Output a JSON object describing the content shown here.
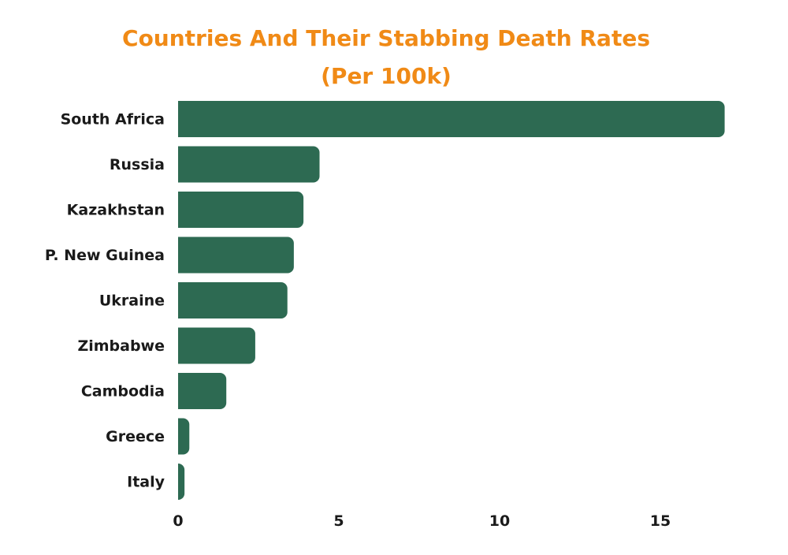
{
  "chart_data": {
    "type": "bar",
    "orientation": "horizontal",
    "title_lines": [
      "Countries And Their Stabbing Death Rates",
      "(Per 100k)"
    ],
    "xlabel": "",
    "ylabel": "",
    "categories": [
      "South Africa",
      "Russia",
      "Kazakhstan",
      "P. New Guinea",
      "Ukraine",
      "Zimbabwe",
      "Cambodia",
      "Greece",
      "Italy"
    ],
    "values": [
      17.0,
      4.4,
      3.9,
      3.6,
      3.4,
      2.4,
      1.5,
      0.35,
      0.2
    ],
    "xlim": [
      0,
      17.5
    ],
    "xticks": [
      0,
      5,
      10,
      15
    ],
    "grid": false,
    "legend": "none",
    "colors": {
      "bar": "#2d6a52",
      "title": "#f08a16",
      "text": "#1a1a1a"
    }
  }
}
